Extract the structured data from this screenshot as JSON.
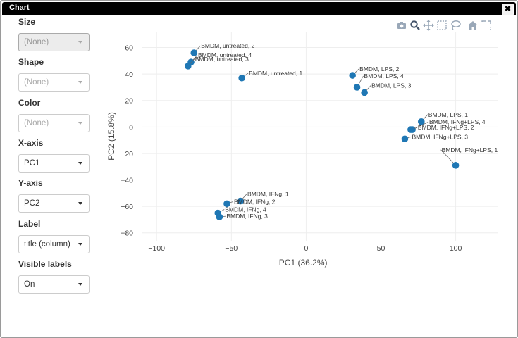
{
  "window": {
    "title": "Chart",
    "close_label": "✖"
  },
  "sidebar": {
    "fields": [
      {
        "label": "Size",
        "value": "(None)",
        "state": "disabled"
      },
      {
        "label": "Shape",
        "value": "(None)",
        "state": "placeholder"
      },
      {
        "label": "Color",
        "value": "(None)",
        "state": "placeholder"
      },
      {
        "label": "X-axis",
        "value": "PC1",
        "state": "normal"
      },
      {
        "label": "Y-axis",
        "value": "PC2",
        "state": "normal"
      },
      {
        "label": "Label",
        "value": "title (column)",
        "state": "normal"
      },
      {
        "label": "Visible labels",
        "value": "On",
        "state": "normal"
      }
    ]
  },
  "modebar": {
    "buttons": [
      "camera-icon",
      "zoom-icon",
      "pan-icon",
      "box-select-icon",
      "lasso-icon",
      "home-icon",
      "autoscale-icon"
    ]
  },
  "colors": {
    "marker": "#1f77b4",
    "grid": "#eeeeee",
    "axis_text": "#444444"
  },
  "chart_data": {
    "type": "scatter",
    "xlabel": "PC1 (36.2%)",
    "ylabel": "PC2 (15.8%)",
    "xlim": [
      -110,
      128
    ],
    "ylim": [
      -86,
      72
    ],
    "xticks": [
      -100,
      -50,
      0,
      50,
      100
    ],
    "yticks": [
      -80,
      -60,
      -40,
      -20,
      0,
      20,
      40,
      60
    ],
    "xtick_labels": [
      "−100",
      "−50",
      "0",
      "50",
      "100"
    ],
    "yticks_labels": [
      "−80",
      "−60",
      "−40",
      "−20",
      "0",
      "20",
      "40",
      "60"
    ],
    "grid": true,
    "points": [
      {
        "label": "BMDM, untreated, 2",
        "x": -75,
        "y": 56
      },
      {
        "label": "BMDM, untreated, 4",
        "x": -77,
        "y": 49
      },
      {
        "label": "BMDM, untreated, 3",
        "x": -79,
        "y": 46
      },
      {
        "label": "BMDM, untreated, 1",
        "x": -43,
        "y": 37
      },
      {
        "label": "BMDM, LPS, 2",
        "x": 31,
        "y": 39
      },
      {
        "label": "BMDM, LPS, 4",
        "x": 34,
        "y": 30
      },
      {
        "label": "BMDM, LPS, 3",
        "x": 39,
        "y": 26
      },
      {
        "label": "BMDM, LPS, 1",
        "x": 77,
        "y": 4
      },
      {
        "label": "BMDM, IFNg+LPS, 4",
        "x": 71,
        "y": -2
      },
      {
        "label": "BMDM, IFNg+LPS, 2",
        "x": 70,
        "y": -2
      },
      {
        "label": "BMDM, IFNg+LPS, 3",
        "x": 66,
        "y": -9
      },
      {
        "label": "BMDM, IFNg+LPS, 1",
        "x": 100,
        "y": -29
      },
      {
        "label": "BMDM, IFNg, 1",
        "x": -44,
        "y": -56
      },
      {
        "label": "BMDM, IFNg, 2",
        "x": -53,
        "y": -58
      },
      {
        "label": "BMDM, IFNg, 4",
        "x": -59,
        "y": -65
      },
      {
        "label": "BMDM, IFNg, 3",
        "x": -58,
        "y": -68
      }
    ]
  }
}
